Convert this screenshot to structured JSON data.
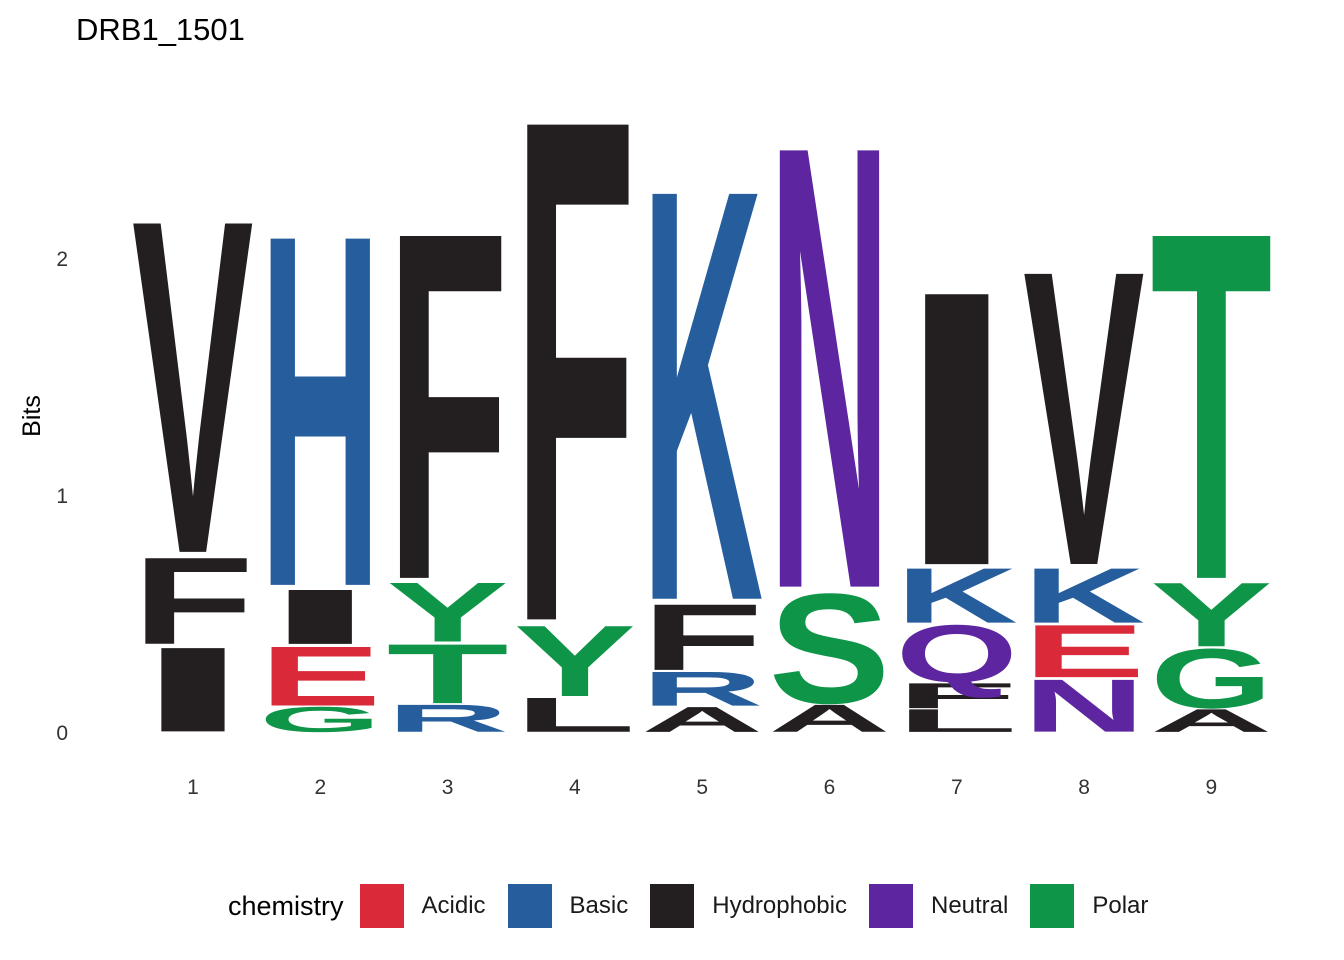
{
  "chart_data": {
    "type": "sequence-logo",
    "title": "DRB1_1501",
    "ylabel": "Bits",
    "xlabel": "",
    "ylim": [
      0,
      2.67
    ],
    "yticks": [
      0,
      1,
      2
    ],
    "positions": [
      1,
      2,
      3,
      4,
      5,
      6,
      7,
      8,
      9
    ],
    "legend": {
      "title": "chemistry",
      "placement": "bottom",
      "items": [
        {
          "label": "Acidic",
          "color": "#DA2939"
        },
        {
          "label": "Basic",
          "color": "#265E9D"
        },
        {
          "label": "Hydrophobic",
          "color": "#231F20"
        },
        {
          "label": "Neutral",
          "color": "#5D26A0"
        },
        {
          "label": "Polar",
          "color": "#0F9548"
        }
      ]
    },
    "stacks": [
      {
        "position": 1,
        "letters": [
          {
            "letter": "I",
            "chemistry": "Hydrophobic",
            "bits": 0.37
          },
          {
            "letter": "F",
            "chemistry": "Hydrophobic",
            "bits": 0.38
          },
          {
            "letter": "V",
            "chemistry": "Hydrophobic",
            "bits": 1.46
          }
        ]
      },
      {
        "position": 2,
        "letters": [
          {
            "letter": "G",
            "chemistry": "Polar",
            "bits": 0.11
          },
          {
            "letter": "E",
            "chemistry": "Acidic",
            "bits": 0.26
          },
          {
            "letter": "I",
            "chemistry": "Hydrophobic",
            "bits": 0.24
          },
          {
            "letter": "H",
            "chemistry": "Basic",
            "bits": 1.54
          }
        ]
      },
      {
        "position": 3,
        "letters": [
          {
            "letter": "R",
            "chemistry": "Basic",
            "bits": 0.12
          },
          {
            "letter": "T",
            "chemistry": "Polar",
            "bits": 0.26
          },
          {
            "letter": "Y",
            "chemistry": "Polar",
            "bits": 0.26
          },
          {
            "letter": "F",
            "chemistry": "Hydrophobic",
            "bits": 1.52
          }
        ]
      },
      {
        "position": 4,
        "letters": [
          {
            "letter": "L",
            "chemistry": "Hydrophobic",
            "bits": 0.15
          },
          {
            "letter": "Y",
            "chemistry": "Polar",
            "bits": 0.31
          },
          {
            "letter": "F",
            "chemistry": "Hydrophobic",
            "bits": 2.2
          }
        ]
      },
      {
        "position": 5,
        "letters": [
          {
            "letter": "A",
            "chemistry": "Hydrophobic",
            "bits": 0.11
          },
          {
            "letter": "R",
            "chemistry": "Basic",
            "bits": 0.15
          },
          {
            "letter": "F",
            "chemistry": "Hydrophobic",
            "bits": 0.29
          },
          {
            "letter": "K",
            "chemistry": "Basic",
            "bits": 1.8
          }
        ]
      },
      {
        "position": 6,
        "letters": [
          {
            "letter": "A",
            "chemistry": "Hydrophobic",
            "bits": 0.12
          },
          {
            "letter": "S",
            "chemistry": "Polar",
            "bits": 0.48
          },
          {
            "letter": "N",
            "chemistry": "Neutral",
            "bits": 1.94
          }
        ]
      },
      {
        "position": 7,
        "letters": [
          {
            "letter": "L",
            "chemistry": "Hydrophobic",
            "bits": 0.1
          },
          {
            "letter": "F",
            "chemistry": "Hydrophobic",
            "bits": 0.11
          },
          {
            "letter": "Q",
            "chemistry": "Neutral",
            "bits": 0.25
          },
          {
            "letter": "K",
            "chemistry": "Basic",
            "bits": 0.24
          },
          {
            "letter": "I",
            "chemistry": "Hydrophobic",
            "bits": 1.2
          }
        ]
      },
      {
        "position": 8,
        "letters": [
          {
            "letter": "N",
            "chemistry": "Neutral",
            "bits": 0.23
          },
          {
            "letter": "E",
            "chemistry": "Acidic",
            "bits": 0.23
          },
          {
            "letter": "K",
            "chemistry": "Basic",
            "bits": 0.24
          },
          {
            "letter": "V",
            "chemistry": "Hydrophobic",
            "bits": 1.29
          }
        ]
      },
      {
        "position": 9,
        "letters": [
          {
            "letter": "A",
            "chemistry": "Hydrophobic",
            "bits": 0.1
          },
          {
            "letter": "G",
            "chemistry": "Polar",
            "bits": 0.26
          },
          {
            "letter": "Y",
            "chemistry": "Polar",
            "bits": 0.28
          },
          {
            "letter": "T",
            "chemistry": "Polar",
            "bits": 1.52
          }
        ]
      }
    ]
  }
}
